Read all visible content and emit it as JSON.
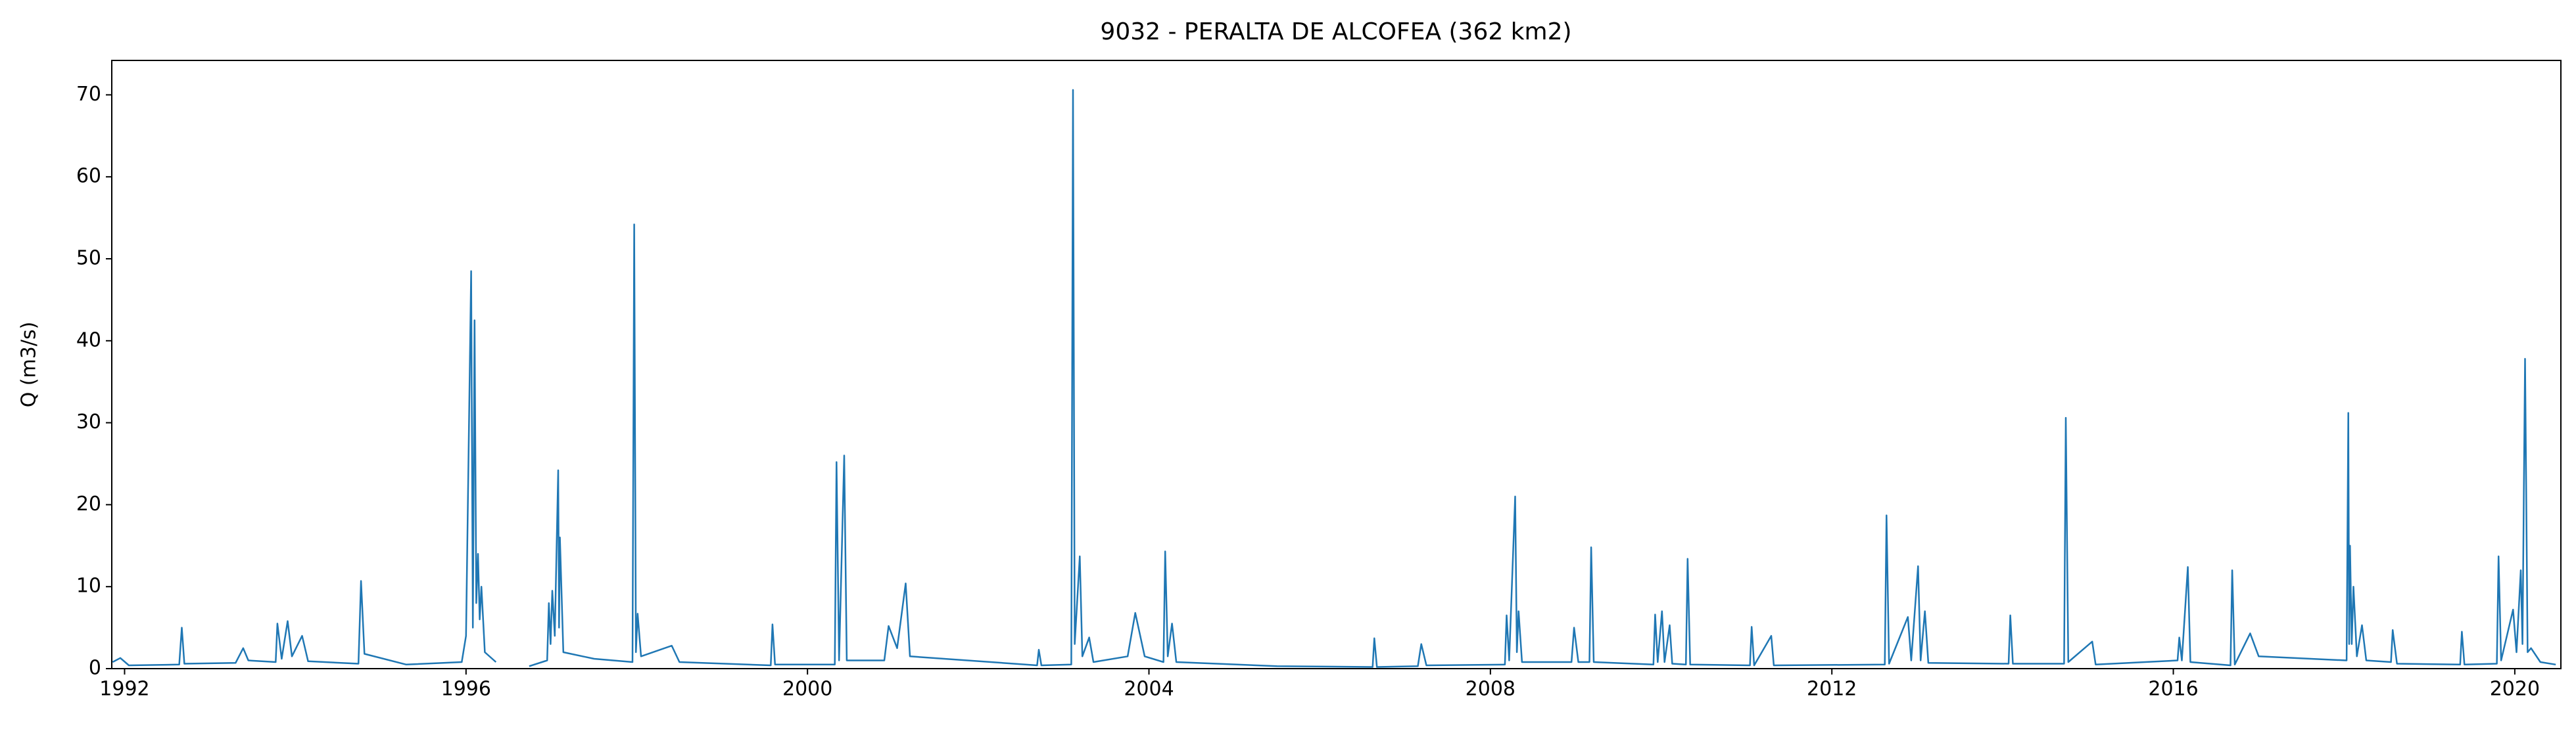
{
  "chart_data": {
    "type": "line",
    "title": "9032 - PERALTA DE ALCOFEA (362 km2)",
    "y_label": "Q (m3/s)",
    "color": "#1f77b4",
    "x": [
      1991.86,
      1991.95,
      1992.05,
      1992.64,
      1992.67,
      1992.7,
      1993.3,
      1993.39,
      1993.45,
      1993.77,
      1993.79,
      1993.84,
      1993.91,
      1993.96,
      1994.08,
      1994.15,
      1994.74,
      1994.77,
      1994.81,
      1995.3,
      1995.95,
      1996.0,
      1996.06,
      1996.08,
      1996.1,
      1996.12,
      1996.14,
      1996.16,
      1996.18,
      1996.22,
      1996.35,
      1996.5,
      1996.74,
      1996.95,
      1996.97,
      1996.99,
      1997.01,
      1997.04,
      1997.08,
      1997.09,
      1997.1,
      1997.14,
      1997.5,
      1997.95,
      1997.97,
      1997.99,
      1998.01,
      1998.05,
      1998.41,
      1998.5,
      1999.57,
      1999.59,
      1999.62,
      2000.32,
      2000.34,
      2000.37,
      2000.43,
      2000.46,
      2000.9,
      2000.95,
      2001.05,
      2001.15,
      2001.2,
      2002.69,
      2002.71,
      2002.74,
      2003.09,
      2003.11,
      2003.13,
      2003.19,
      2003.22,
      2003.3,
      2003.35,
      2003.75,
      2003.84,
      2003.95,
      2004.17,
      2004.19,
      2004.22,
      2004.27,
      2004.32,
      2005.5,
      2006.62,
      2006.64,
      2006.67,
      2007.15,
      2007.19,
      2007.25,
      2008.17,
      2008.19,
      2008.22,
      2008.29,
      2008.31,
      2008.33,
      2008.37,
      2008.95,
      2008.98,
      2009.03,
      2009.16,
      2009.18,
      2009.21,
      2009.91,
      2009.93,
      2009.96,
      2010.01,
      2010.04,
      2010.1,
      2010.13,
      2010.29,
      2010.31,
      2010.34,
      2011.04,
      2011.06,
      2011.09,
      2011.29,
      2011.32,
      2012.62,
      2012.64,
      2012.67,
      2012.89,
      2012.93,
      2013.01,
      2013.04,
      2013.09,
      2013.13,
      2014.07,
      2014.09,
      2014.12,
      2014.72,
      2014.74,
      2014.77,
      2015.05,
      2015.09,
      2016.05,
      2016.07,
      2016.1,
      2016.17,
      2016.2,
      2016.67,
      2016.69,
      2016.72,
      2016.9,
      2017.0,
      2018.03,
      2018.05,
      2018.06,
      2018.07,
      2018.09,
      2018.11,
      2018.15,
      2018.21,
      2018.26,
      2018.55,
      2018.57,
      2018.62,
      2019.36,
      2019.38,
      2019.41,
      2019.79,
      2019.81,
      2019.84,
      2019.98,
      2020.02,
      2020.07,
      2020.09,
      2020.12,
      2020.15,
      2020.19,
      2020.3,
      2020.48
    ],
    "values": [
      0.8,
      1.3,
      0.4,
      0.5,
      5,
      0.6,
      0.7,
      2.5,
      1.0,
      0.8,
      5.5,
      1.2,
      5.8,
      1.5,
      4,
      0.9,
      0.6,
      10.7,
      1.8,
      0.5,
      0.8,
      4,
      48.5,
      5,
      42.5,
      8,
      14,
      6,
      10,
      2,
      0.8,
      null,
      0.3,
      1,
      8,
      3,
      9.5,
      4,
      24.2,
      5,
      16,
      2,
      1.2,
      0.8,
      54.2,
      2,
      6.7,
      1.5,
      2.8,
      0.8,
      0.4,
      5.4,
      0.5,
      0.5,
      25.2,
      1,
      26,
      1,
      1,
      5.2,
      2.5,
      10.4,
      1.5,
      0.4,
      2.3,
      0.4,
      0.5,
      70.6,
      3,
      13.7,
      1.5,
      3.8,
      0.8,
      1.5,
      6.8,
      1.5,
      0.8,
      14.3,
      1.5,
      5.5,
      0.8,
      0.3,
      0.2,
      3.7,
      0.2,
      0.3,
      3,
      0.4,
      0.5,
      6.5,
      1,
      21,
      2,
      7,
      0.8,
      0.8,
      5,
      0.8,
      0.8,
      14.8,
      0.8,
      0.5,
      6.6,
      0.8,
      7,
      0.8,
      5.3,
      0.6,
      0.5,
      13.4,
      0.5,
      0.4,
      5.1,
      0.4,
      4,
      0.4,
      0.5,
      18.7,
      0.6,
      6.3,
      1,
      12.5,
      1,
      7,
      0.7,
      0.6,
      6.5,
      0.6,
      0.6,
      30.6,
      0.8,
      3.3,
      0.5,
      1,
      3.8,
      1,
      12.4,
      0.8,
      0.4,
      12,
      0.5,
      4.3,
      1.5,
      1,
      31.2,
      3,
      15,
      3,
      10,
      1.5,
      5.3,
      1,
      0.8,
      4.7,
      0.6,
      0.5,
      4.5,
      0.5,
      0.6,
      13.7,
      1,
      7.2,
      2,
      12,
      3,
      37.8,
      2,
      2.5,
      0.8,
      0.5
    ],
    "xlim": [
      1991.85,
      2020.54
    ],
    "ylim": [
      0,
      74.2
    ],
    "xticks": [
      1992,
      1996,
      2000,
      2004,
      2008,
      2012,
      2016,
      2020
    ],
    "yticks": [
      0,
      10,
      20,
      30,
      40,
      50,
      60,
      70
    ]
  }
}
